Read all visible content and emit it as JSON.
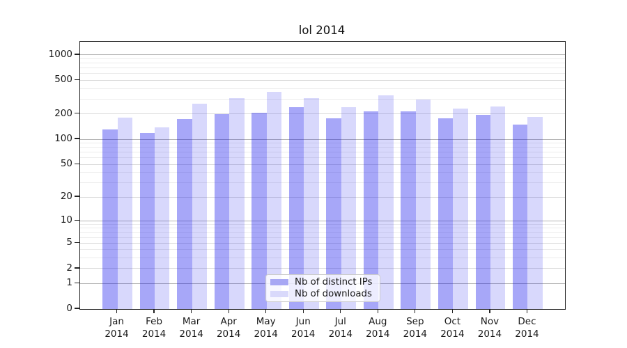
{
  "chart_data": {
    "type": "bar",
    "title": "lol 2014",
    "x": [
      {
        "month": "Jan",
        "year": "2014"
      },
      {
        "month": "Feb",
        "year": "2014"
      },
      {
        "month": "Mar",
        "year": "2014"
      },
      {
        "month": "Apr",
        "year": "2014"
      },
      {
        "month": "May",
        "year": "2014"
      },
      {
        "month": "Jun",
        "year": "2014"
      },
      {
        "month": "Jul",
        "year": "2014"
      },
      {
        "month": "Aug",
        "year": "2014"
      },
      {
        "month": "Sep",
        "year": "2014"
      },
      {
        "month": "Oct",
        "year": "2014"
      },
      {
        "month": "Nov",
        "year": "2014"
      },
      {
        "month": "Dec",
        "year": "2014"
      }
    ],
    "series": [
      {
        "name": "Nb of distinct IPs",
        "fill": "rgba(10,10,235,0.36)",
        "legend_swatch": "#a7a7f4",
        "values": [
          130,
          118,
          174,
          200,
          208,
          240,
          177,
          215,
          215,
          177,
          195,
          151
        ]
      },
      {
        "name": "Nb of downloads",
        "fill": "rgba(10,10,235,0.16)",
        "legend_swatch": "#d9d9fb",
        "values": [
          180,
          138,
          265,
          310,
          368,
          308,
          242,
          330,
          296,
          230,
          247,
          186
        ]
      }
    ],
    "y_axis": {
      "scale": "symlog",
      "max_value": 1430,
      "tick_values": [
        0,
        1,
        2,
        5,
        10,
        20,
        50,
        100,
        200,
        500,
        1000
      ],
      "major_grid_values": [
        1,
        10,
        100,
        1000
      ],
      "mid_grid_values": [
        2,
        5,
        20,
        50,
        200,
        500
      ],
      "minor_grid_values": [
        3,
        4,
        6,
        7,
        8,
        9,
        30,
        40,
        60,
        70,
        80,
        90,
        300,
        400,
        600,
        700,
        800,
        900
      ]
    },
    "legend_position": "bottom-center",
    "colors": {
      "major_grid": "#b3b3b3",
      "mid_grid": "#d9d9d9",
      "minor_grid": "#ebebeb",
      "spine": "#222222",
      "text": "#1a1a1a"
    }
  }
}
